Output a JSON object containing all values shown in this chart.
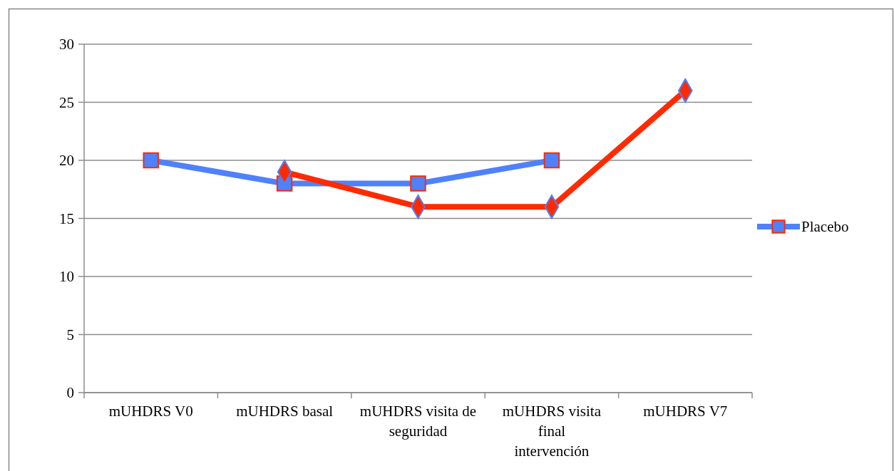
{
  "chart_data": {
    "type": "line",
    "categories": [
      "mUHDRS V0",
      "mUHDRS basal",
      "mUHDRS visita de seguridad",
      "mUHDRS visita final intervención",
      "mUHDRS V7"
    ],
    "series": [
      {
        "name": "Placebo",
        "color": "#4f81fd",
        "values": [
          20,
          18,
          18,
          20,
          null
        ],
        "marker": "square"
      },
      {
        "color": "#ff2a00",
        "values": [
          null,
          19,
          16,
          16,
          26
        ],
        "marker": "diamond"
      }
    ],
    "ylim": [
      0,
      30
    ],
    "yticks": [
      0,
      5,
      10,
      15,
      20,
      25,
      30
    ],
    "grid": "y",
    "legend": "right"
  }
}
